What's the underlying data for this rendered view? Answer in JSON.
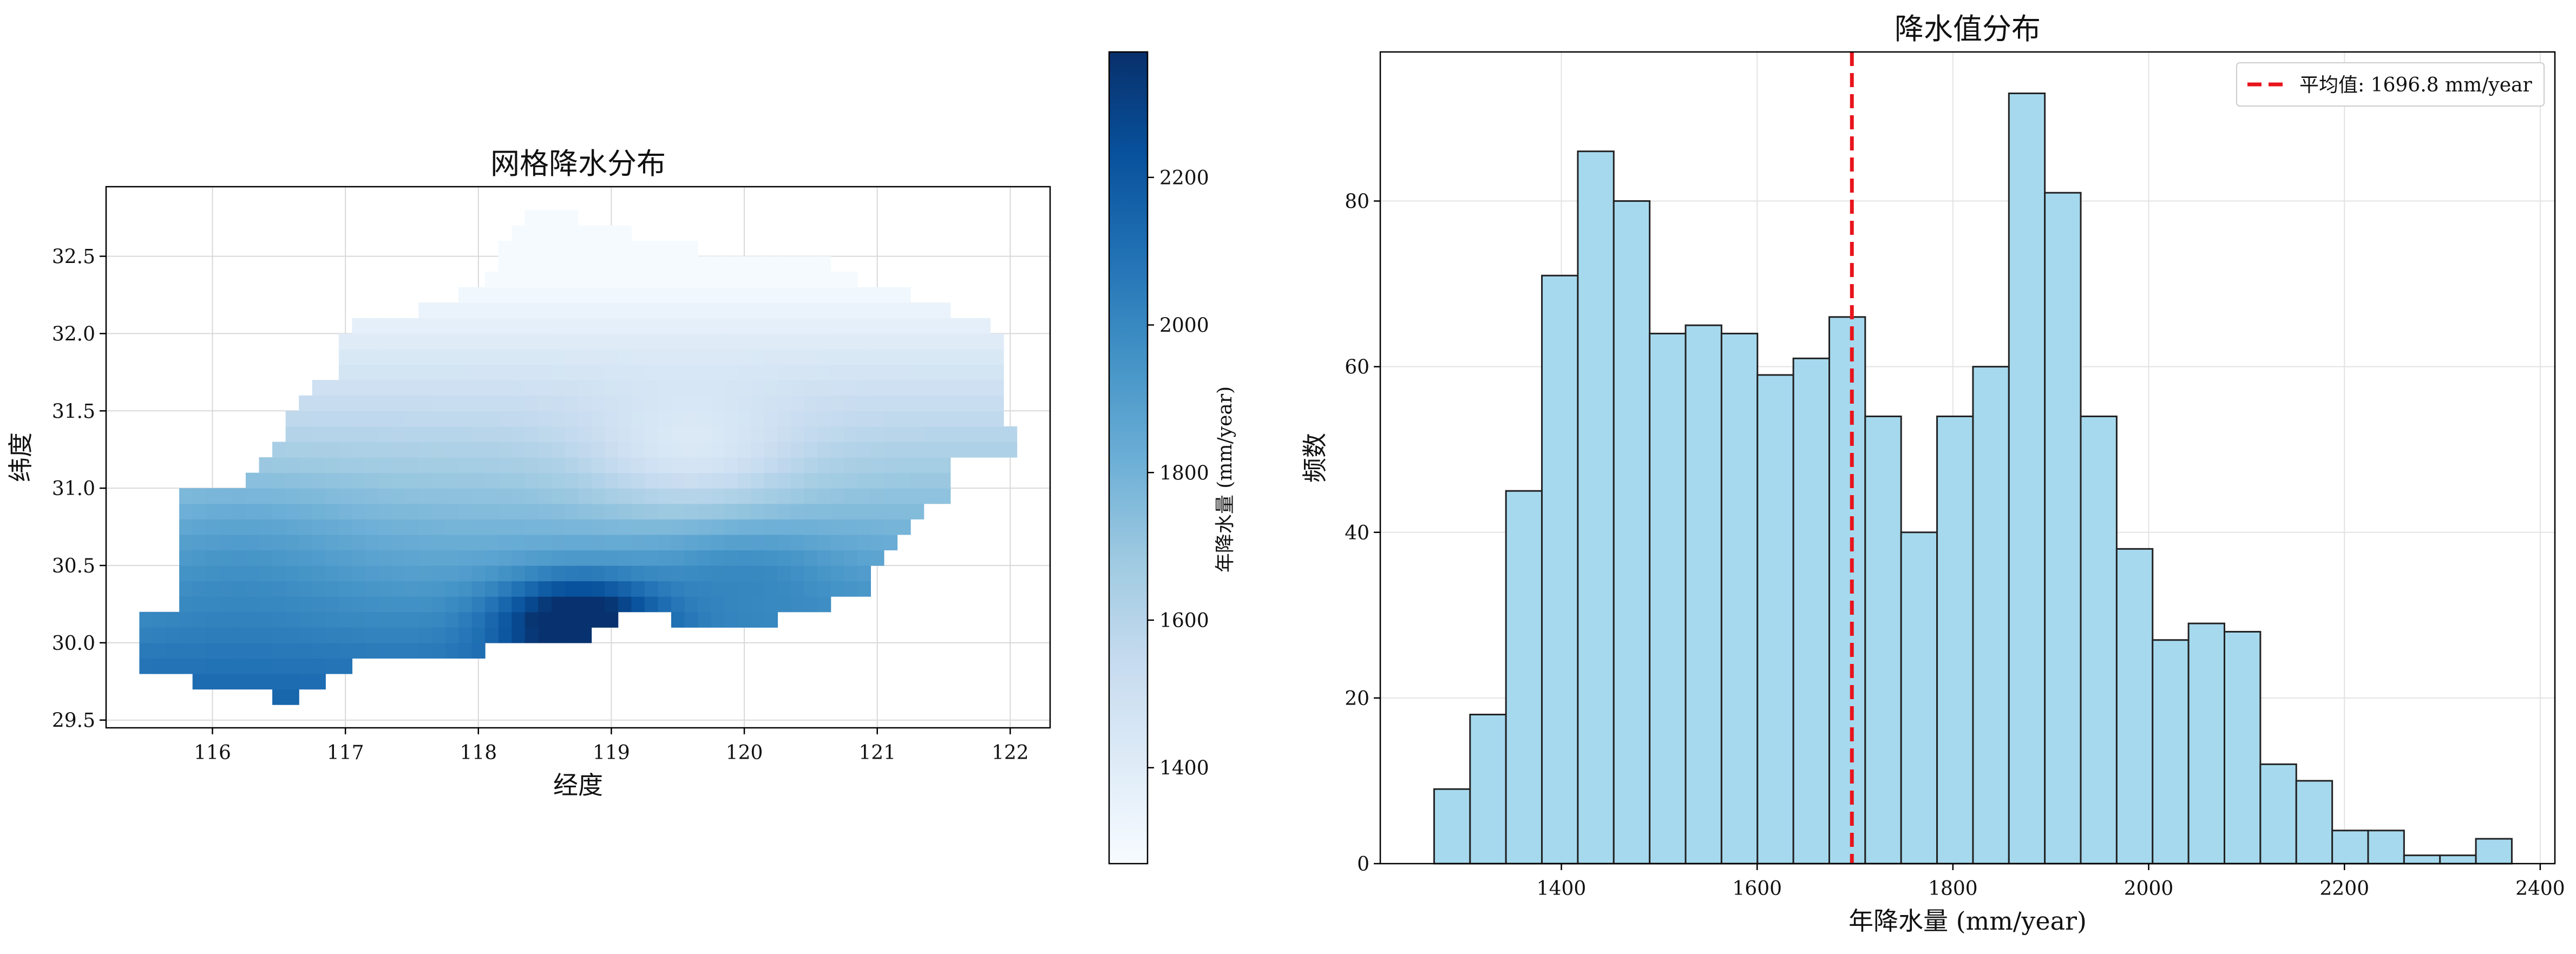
{
  "chart_data": [
    {
      "type": "heatmap",
      "title": "网格降水分布",
      "xlabel": "经度",
      "ylabel": "纬度",
      "xlim": [
        115.2,
        122.3
      ],
      "ylim": [
        29.45,
        32.95
      ],
      "xticks": [
        116,
        117,
        118,
        119,
        120,
        121,
        122
      ],
      "yticks": [
        29.5,
        30.0,
        30.5,
        31.0,
        31.5,
        32.0,
        32.5
      ],
      "grid": true,
      "grid_resolution_deg": 0.1,
      "colormap": "Blues",
      "colorbar": {
        "label": "年降水量 (mm/year)",
        "range": [
          1270,
          2370
        ],
        "ticks": [
          1400,
          1600,
          1800,
          2000,
          2200
        ]
      },
      "values_note": "年降水量 (mm/year)"
    },
    {
      "type": "bar",
      "title": "降水值分布",
      "xlabel": "年降水量 (mm/year)",
      "ylabel": "频数",
      "xlim": [
        1215,
        2415
      ],
      "ylim": [
        0,
        98
      ],
      "xticks": [
        1400,
        1600,
        1800,
        2000,
        2200,
        2400
      ],
      "yticks": [
        0,
        20,
        40,
        60,
        80
      ],
      "grid": true,
      "bin_start": 1270,
      "bin_width": 36.7,
      "counts": [
        9,
        18,
        45,
        71,
        86,
        80,
        64,
        65,
        64,
        59,
        61,
        66,
        54,
        40,
        54,
        60,
        93,
        81,
        54,
        38,
        27,
        29,
        28,
        12,
        10,
        4,
        4,
        1,
        1,
        3
      ],
      "mean_line": {
        "value": 1696.8,
        "label": "平均值: 1696.8 mm/year",
        "color": "#e8141c"
      },
      "legend_position": "upper right",
      "bar_color": "#a6d9ee",
      "edge_color": "#222222"
    }
  ]
}
